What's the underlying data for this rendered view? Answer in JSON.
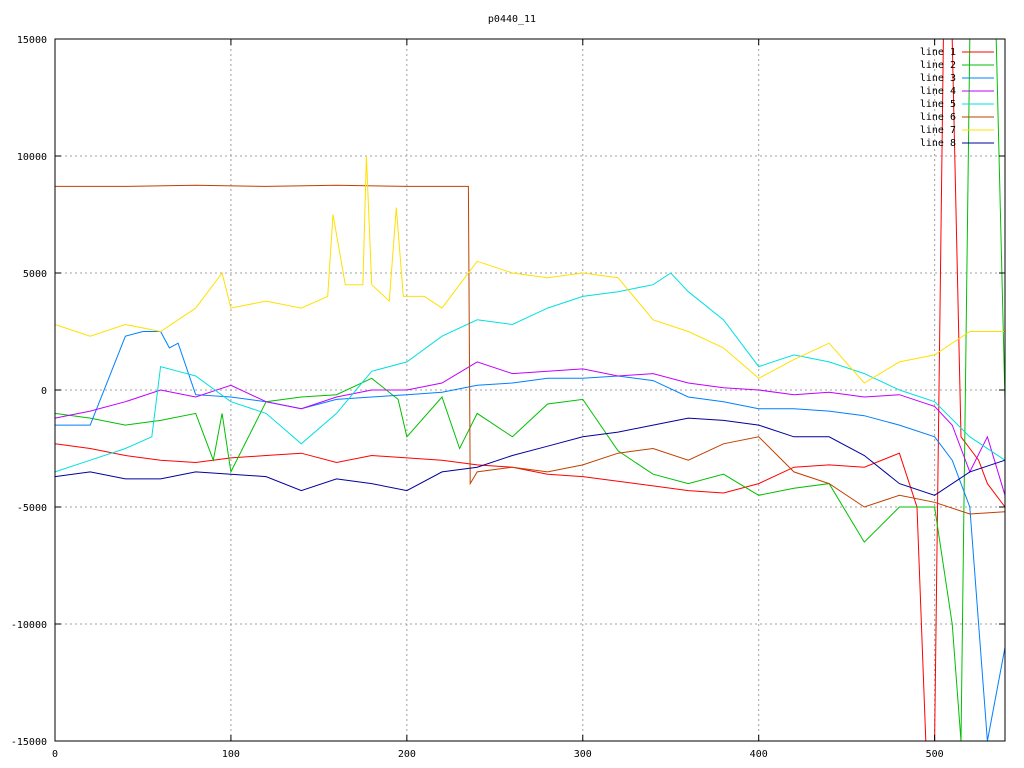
{
  "chart_data": {
    "type": "line",
    "title": "p0440_11",
    "xlabel": "",
    "ylabel": "",
    "xlim": [
      0,
      540
    ],
    "ylim": [
      -15000,
      15000
    ],
    "x_ticks": [
      0,
      100,
      200,
      300,
      400,
      500
    ],
    "x_tick_labels": [
      "0",
      "100",
      "200",
      "300",
      "400",
      "500"
    ],
    "y_ticks": [
      -15000,
      -10000,
      -5000,
      0,
      5000,
      10000,
      15000
    ],
    "y_tick_labels": [
      "-15000",
      "-10000",
      "-5000",
      "0",
      "5000",
      "10000",
      "15000"
    ],
    "grid": true,
    "legend_position": "top-right",
    "series": [
      {
        "name": "line 1",
        "color": "#ff0000",
        "x": [
          0,
          20,
          40,
          60,
          80,
          100,
          120,
          140,
          160,
          180,
          200,
          220,
          240,
          260,
          280,
          300,
          320,
          340,
          360,
          380,
          400,
          420,
          440,
          460,
          480,
          490,
          495,
          500,
          505,
          510,
          515,
          520,
          525,
          530,
          540
        ],
        "y": [
          -2300,
          -2500,
          -2800,
          -3000,
          -3100,
          -2900,
          -2800,
          -2700,
          -3100,
          -2800,
          -2900,
          -3000,
          -3200,
          -3300,
          -3600,
          -3700,
          -3900,
          -4100,
          -4300,
          -4400,
          -4000,
          -3300,
          -3200,
          -3300,
          -2700,
          -5000,
          -15000,
          -15000,
          15000,
          15000,
          -2000,
          -2500,
          -3000,
          -4000,
          -5000
        ]
      },
      {
        "name": "line 2",
        "color": "#00c000",
        "x": [
          0,
          20,
          40,
          60,
          80,
          90,
          95,
          100,
          120,
          140,
          160,
          180,
          195,
          200,
          220,
          230,
          240,
          260,
          280,
          300,
          320,
          340,
          360,
          380,
          400,
          420,
          440,
          460,
          480,
          500,
          510,
          515,
          520,
          525,
          530,
          535,
          540
        ],
        "y": [
          -1000,
          -1200,
          -1500,
          -1300,
          -1000,
          -3000,
          -1000,
          -3500,
          -500,
          -300,
          -200,
          500,
          -400,
          -2000,
          -300,
          -2500,
          -1000,
          -2000,
          -600,
          -400,
          -2600,
          -3600,
          -4000,
          -3600,
          -4500,
          -4200,
          -4000,
          -6500,
          -5000,
          -5000,
          -10000,
          -15000,
          15000,
          15000,
          15000,
          15000,
          -500
        ]
      },
      {
        "name": "line 3",
        "color": "#0080ff",
        "x": [
          0,
          20,
          40,
          50,
          60,
          65,
          70,
          80,
          100,
          120,
          140,
          160,
          180,
          200,
          220,
          240,
          260,
          280,
          300,
          320,
          340,
          360,
          380,
          400,
          420,
          440,
          460,
          480,
          500,
          510,
          520,
          530,
          540
        ],
        "y": [
          -1500,
          -1500,
          2300,
          2500,
          2500,
          1800,
          2000,
          -200,
          -300,
          -500,
          -800,
          -400,
          -300,
          -200,
          -100,
          200,
          300,
          500,
          500,
          600,
          400,
          -300,
          -500,
          -800,
          -800,
          -900,
          -1100,
          -1500,
          -2000,
          -3000,
          -5000,
          -15000,
          -11000
        ]
      },
      {
        "name": "line 4",
        "color": "#c000ff",
        "x": [
          0,
          20,
          40,
          60,
          80,
          100,
          120,
          140,
          160,
          180,
          200,
          220,
          240,
          260,
          280,
          300,
          320,
          340,
          360,
          380,
          400,
          420,
          440,
          460,
          480,
          500,
          510,
          520,
          530,
          540
        ],
        "y": [
          -1200,
          -900,
          -500,
          0,
          -300,
          200,
          -500,
          -800,
          -300,
          0,
          0,
          300,
          1200,
          700,
          800,
          900,
          600,
          700,
          300,
          100,
          0,
          -200,
          -100,
          -300,
          -200,
          -700,
          -1500,
          -3500,
          -2000,
          -4500
        ]
      },
      {
        "name": "line 5",
        "color": "#00e0e0",
        "x": [
          0,
          20,
          40,
          55,
          60,
          70,
          80,
          100,
          120,
          140,
          160,
          180,
          200,
          220,
          240,
          260,
          280,
          300,
          320,
          340,
          350,
          360,
          380,
          400,
          420,
          440,
          460,
          480,
          500,
          520,
          540
        ],
        "y": [
          -3500,
          -3000,
          -2500,
          -2000,
          1000,
          800,
          600,
          -500,
          -1000,
          -2300,
          -1000,
          800,
          1200,
          2300,
          3000,
          2800,
          3500,
          4000,
          4200,
          4500,
          5000,
          4200,
          3000,
          1000,
          1500,
          1200,
          700,
          0,
          -500,
          -2000,
          -3000
        ]
      },
      {
        "name": "line 6",
        "color": "#c04000",
        "x": [
          0,
          40,
          80,
          120,
          160,
          200,
          230,
          235,
          236,
          240,
          260,
          280,
          300,
          320,
          340,
          360,
          380,
          400,
          420,
          440,
          460,
          480,
          500,
          520,
          540
        ],
        "y": [
          8700,
          8700,
          8750,
          8700,
          8750,
          8700,
          8700,
          8700,
          -4000,
          -3500,
          -3300,
          -3500,
          -3200,
          -2700,
          -2500,
          -3000,
          -2300,
          -2000,
          -3500,
          -4000,
          -5000,
          -4500,
          -4800,
          -5300,
          -5200
        ]
      },
      {
        "name": "line 7",
        "color": "#ffe000",
        "x": [
          0,
          20,
          40,
          60,
          80,
          95,
          100,
          120,
          140,
          155,
          158,
          165,
          175,
          177,
          180,
          190,
          194,
          198,
          210,
          220,
          230,
          240,
          260,
          280,
          300,
          320,
          340,
          360,
          380,
          400,
          420,
          440,
          460,
          480,
          500,
          520,
          540
        ],
        "y": [
          2800,
          2300,
          2800,
          2500,
          3500,
          5000,
          3500,
          3800,
          3500,
          4000,
          7500,
          4500,
          4500,
          10000,
          4500,
          3800,
          7800,
          4000,
          4000,
          3500,
          4500,
          5500,
          5000,
          4800,
          5000,
          4800,
          3000,
          2500,
          1800,
          500,
          1300,
          2000,
          300,
          1200,
          1500,
          2500,
          2500
        ]
      },
      {
        "name": "line 8",
        "color": "#0000a0",
        "x": [
          0,
          20,
          40,
          60,
          80,
          100,
          120,
          140,
          160,
          180,
          200,
          220,
          240,
          260,
          280,
          300,
          320,
          340,
          360,
          380,
          400,
          420,
          440,
          460,
          480,
          500,
          520,
          540
        ],
        "y": [
          -3700,
          -3500,
          -3800,
          -3800,
          -3500,
          -3600,
          -3700,
          -4300,
          -3800,
          -4000,
          -4300,
          -3500,
          -3300,
          -2800,
          -2400,
          -2000,
          -1800,
          -1500,
          -1200,
          -1300,
          -1500,
          -2000,
          -2000,
          -2800,
          -4000,
          -4500,
          -3500,
          -3000
        ]
      }
    ]
  }
}
